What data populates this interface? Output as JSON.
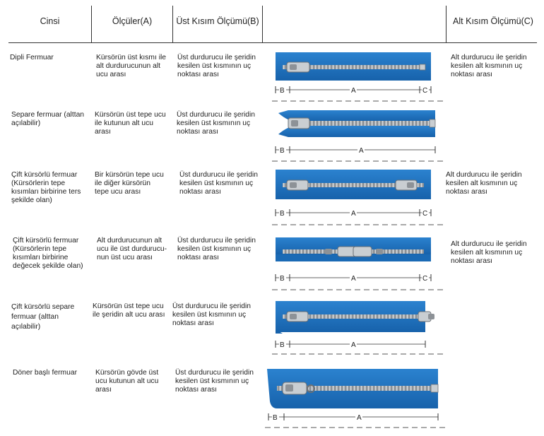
{
  "headers": {
    "type": "Cinsi",
    "measures": "Ölçüler(A)",
    "top_measure": "Üst Kısım Ölçümü(B)",
    "zipper": "",
    "bottom_measure": "Alt Kısım Ölçümü(C)"
  },
  "rows": [
    {
      "type": "Dipli Fermuar",
      "measure_a": "Kürsörün üst kısmı ile alt durdurucunun alt ucu arası",
      "measure_b": "Üst durdurucu ile şeridin kesilen üst kısmının uç noktası arası",
      "measure_c": "Alt durdurucu ile şeridin kesilen alt kısmının uç noktası arası",
      "dim_labels": [
        "B",
        "A",
        "C"
      ]
    },
    {
      "type": "Separe fermuar (alttan açılabilir)",
      "measure_a": "Kürsörün üst tepe ucu ile kutunun alt ucu arası",
      "measure_b": "Üst durdurucu ile şeridin kesilen üst kısmının uç noktası arası",
      "measure_c": "",
      "dim_labels": [
        "B",
        "A"
      ]
    },
    {
      "type": "Çift kürsörlü fermuar (Kürsörlerin tepe kısımları birbirine ters şekilde olan)",
      "measure_a": "Bir kürsörün tepe ucu ile diğer kürsörün tepe ucu arası",
      "measure_b": "Üst durdurucu ile şeridin kesilen üst kısmının uç noktası arası",
      "measure_c": "Alt durdurucu ile şeridin kesilen alt kısmının uç noktası arası",
      "dim_labels": [
        "B",
        "A",
        "C"
      ]
    },
    {
      "type": "Çift kürsörlü fermuar (Kürsörlerin tepe kısımları birbirine değecek şekilde olan)",
      "measure_a": "Alt durdurucunun alt ucu ile üst durdurucu-nun üst ucu arası",
      "measure_b": "Üst durdurucu ile şeridin kesilen üst kısmının uç noktası arası",
      "measure_c": "Alt durdurucu ile şeridin kesilen alt kısmının uç noktası arası",
      "dim_labels": [
        "B",
        "A",
        "C"
      ]
    },
    {
      "type": "Çift kürsörlü separe fermuar (alttan açılabilir)",
      "measure_a": "Kürsörün üst tepe ucu ile şeridin alt ucu arası",
      "measure_b": "Üst durdurucu ile şeridin kesilen üst kısmının uç noktası arası",
      "measure_c": "",
      "dim_labels": [
        "B",
        "A"
      ]
    },
    {
      "type": "Döner başlı fermuar",
      "measure_a": "Kürsörün gövde üst ucu kutunun alt ucu arası",
      "measure_b": "Üst durdurucu ile şeridin kesilen üst kısmının uç noktası arası",
      "measure_c": "",
      "dim_labels": [
        "B",
        "A"
      ]
    }
  ],
  "colors": {
    "tape": "#1f73c0",
    "tape_dark": "#155a9c",
    "teeth": "#a7acb0",
    "metal": "#c7ccd0",
    "line": "#333333",
    "dash": "#777777"
  }
}
